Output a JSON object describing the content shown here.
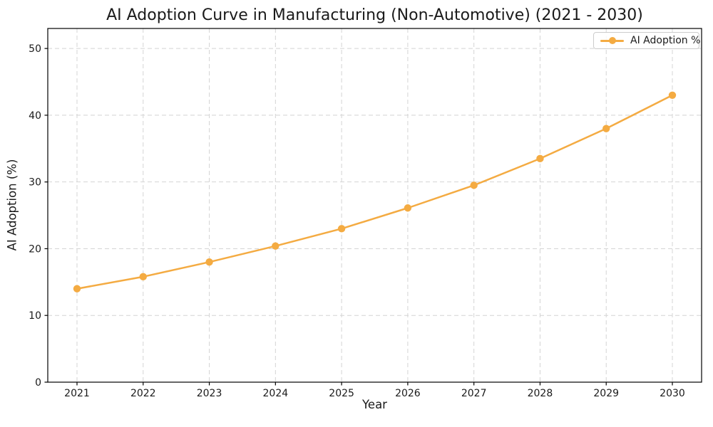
{
  "title": "AI Adoption Curve in Manufacturing (Non-Automotive) (2021 - 2030)",
  "axes": {
    "xlabel": "Year",
    "ylabel": "AI Adoption (%)"
  },
  "legend": {
    "label": "AI Adoption %"
  },
  "colors": {
    "line": "#F4AB42",
    "grid": "#d4d4d4",
    "spine": "#000000",
    "background": "#ffffff",
    "text": "#1a1a1a",
    "legend_border": "#cccccc"
  },
  "chart_data": {
    "type": "line",
    "title": "AI Adoption Curve in Manufacturing (Non-Automotive) (2021 - 2030)",
    "xlabel": "Year",
    "ylabel": "AI Adoption (%)",
    "x": [
      2021,
      2022,
      2023,
      2024,
      2025,
      2026,
      2027,
      2028,
      2029,
      2030
    ],
    "series": [
      {
        "name": "AI Adoption %",
        "color": "#F4AB42",
        "values": [
          14.0,
          15.8,
          18.0,
          20.4,
          23.0,
          26.1,
          29.5,
          33.5,
          38.0,
          43.0
        ]
      }
    ],
    "ylim": [
      0,
      53
    ],
    "yticks": [
      0,
      10,
      20,
      30,
      40,
      50
    ],
    "grid": true,
    "grid_style": "dashed",
    "legend_position": "upper right",
    "marker": "circle"
  }
}
